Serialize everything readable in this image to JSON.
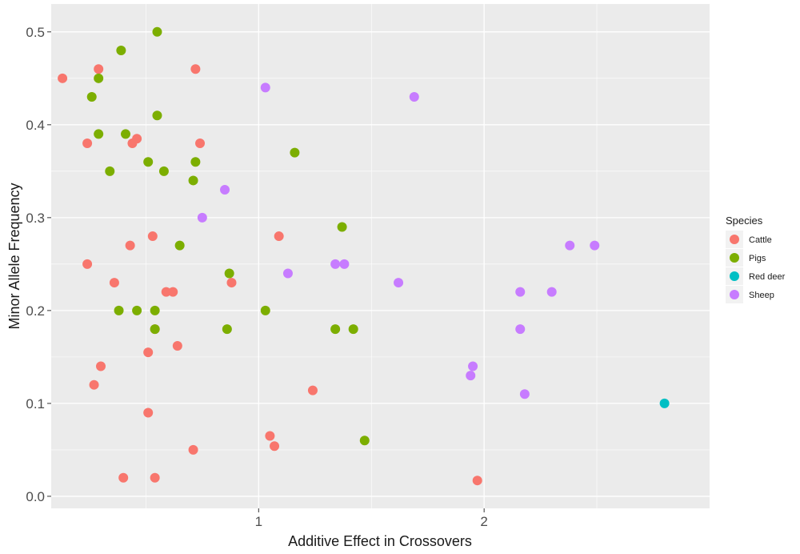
{
  "chart_data": {
    "type": "scatter",
    "xlabel": "Additive Effect in Crossovers",
    "ylabel": "Minor Allele Frequency",
    "xlim": [
      0.08,
      3.0
    ],
    "ylim": [
      -0.013,
      0.53
    ],
    "x_ticks": [
      1,
      2
    ],
    "x_tick_labels": [
      "1",
      "2"
    ],
    "y_ticks": [
      0,
      0.1,
      0.2,
      0.3,
      0.4,
      0.5
    ],
    "y_tick_labels": [
      "0.0",
      "0.1",
      "0.2",
      "0.3",
      "0.4",
      "0.5"
    ],
    "grid": true,
    "panel_background": "#ebebeb",
    "legend": {
      "title": "Species",
      "position": "right"
    },
    "series": [
      {
        "name": "Cattle",
        "color": "#f8766d",
        "points": [
          [
            0.13,
            0.45
          ],
          [
            0.29,
            0.46
          ],
          [
            0.72,
            0.46
          ],
          [
            0.24,
            0.38
          ],
          [
            0.44,
            0.38
          ],
          [
            0.46,
            0.385
          ],
          [
            0.74,
            0.38
          ],
          [
            1.09,
            0.28
          ],
          [
            0.53,
            0.28
          ],
          [
            0.43,
            0.27
          ],
          [
            0.24,
            0.25
          ],
          [
            0.36,
            0.23
          ],
          [
            0.59,
            0.22
          ],
          [
            0.62,
            0.22
          ],
          [
            0.88,
            0.23
          ],
          [
            0.54,
            0.18
          ],
          [
            0.51,
            0.155
          ],
          [
            0.64,
            0.162
          ],
          [
            0.3,
            0.14
          ],
          [
            0.27,
            0.12
          ],
          [
            1.24,
            0.114
          ],
          [
            0.51,
            0.09
          ],
          [
            1.05,
            0.065
          ],
          [
            1.07,
            0.054
          ],
          [
            0.71,
            0.05
          ],
          [
            0.4,
            0.02
          ],
          [
            0.54,
            0.02
          ],
          [
            1.97,
            0.017
          ]
        ]
      },
      {
        "name": "Pigs",
        "color": "#7cae00",
        "points": [
          [
            0.55,
            0.5
          ],
          [
            0.39,
            0.48
          ],
          [
            0.29,
            0.45
          ],
          [
            0.26,
            0.43
          ],
          [
            0.55,
            0.41
          ],
          [
            0.29,
            0.39
          ],
          [
            0.41,
            0.39
          ],
          [
            1.16,
            0.37
          ],
          [
            0.51,
            0.36
          ],
          [
            0.72,
            0.36
          ],
          [
            0.34,
            0.35
          ],
          [
            0.58,
            0.35
          ],
          [
            0.71,
            0.34
          ],
          [
            1.37,
            0.29
          ],
          [
            0.65,
            0.27
          ],
          [
            0.87,
            0.24
          ],
          [
            0.38,
            0.2
          ],
          [
            0.46,
            0.2
          ],
          [
            0.54,
            0.2
          ],
          [
            1.03,
            0.2
          ],
          [
            0.54,
            0.18
          ],
          [
            0.86,
            0.18
          ],
          [
            1.34,
            0.18
          ],
          [
            1.42,
            0.18
          ],
          [
            1.47,
            0.06
          ]
        ]
      },
      {
        "name": "Red deer",
        "color": "#00bfc4",
        "points": [
          [
            2.8,
            0.1
          ]
        ]
      },
      {
        "name": "Sheep",
        "color": "#c77cff",
        "points": [
          [
            1.03,
            0.44
          ],
          [
            1.69,
            0.43
          ],
          [
            0.85,
            0.33
          ],
          [
            0.75,
            0.3
          ],
          [
            2.38,
            0.27
          ],
          [
            2.49,
            0.27
          ],
          [
            1.34,
            0.25
          ],
          [
            1.38,
            0.25
          ],
          [
            1.13,
            0.24
          ],
          [
            1.62,
            0.23
          ],
          [
            2.16,
            0.22
          ],
          [
            2.3,
            0.22
          ],
          [
            2.16,
            0.18
          ],
          [
            1.95,
            0.14
          ],
          [
            1.94,
            0.13
          ],
          [
            2.18,
            0.11
          ]
        ]
      }
    ]
  }
}
